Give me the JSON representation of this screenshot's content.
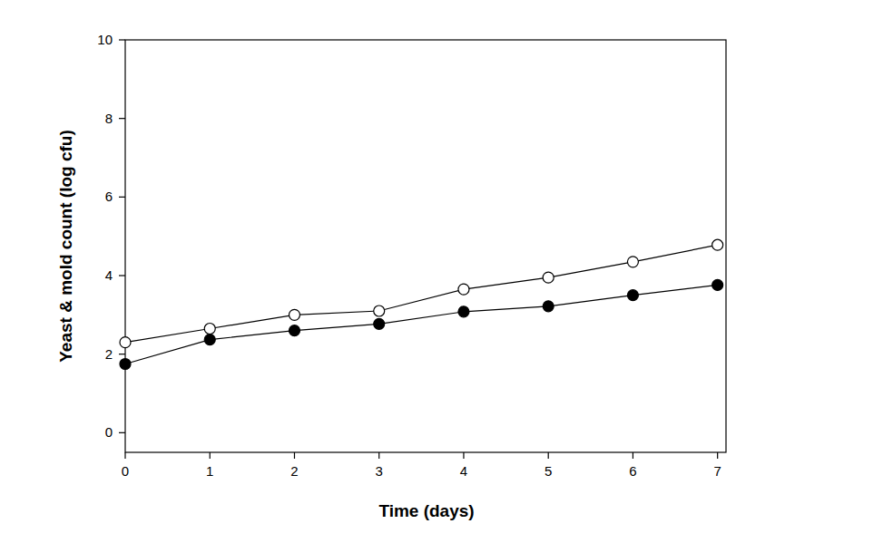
{
  "chart_data": {
    "type": "line",
    "x_label": "Time (days)",
    "y_label": "Yeast & mold count (log cfu)",
    "x": [
      0,
      1,
      2,
      3,
      4,
      5,
      6,
      7
    ],
    "series": [
      {
        "color": "#000000",
        "marker": "circle-open",
        "line_style": "solid",
        "values": [
          2.3,
          2.65,
          3.0,
          3.1,
          3.65,
          3.95,
          4.35,
          4.78
        ]
      },
      {
        "color": "#000000",
        "marker": "circle",
        "line_style": "solid",
        "values": [
          1.75,
          2.37,
          2.6,
          2.77,
          3.08,
          3.22,
          3.5,
          3.76
        ]
      }
    ],
    "xlim": [
      0,
      7.1
    ],
    "xticks": [
      0,
      1,
      2,
      3,
      4,
      5,
      6,
      7
    ],
    "ylim": [
      -0.5,
      10
    ],
    "yticks": [
      0,
      2,
      4,
      6,
      8,
      10
    ],
    "grid": false
  }
}
